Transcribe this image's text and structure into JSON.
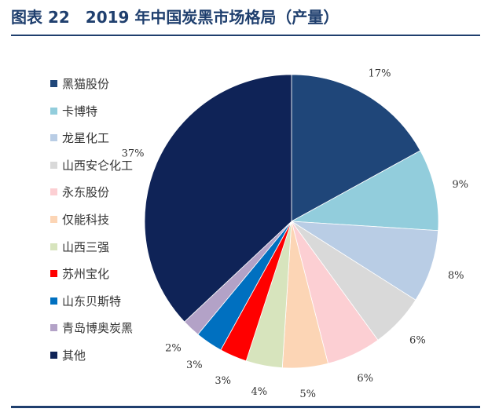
{
  "header": {
    "title": "图表 22　2019 年中国炭黑市场格局（产量）"
  },
  "chart_data": {
    "type": "pie",
    "title": "2019 年中国炭黑市场格局（产量）",
    "start": "12 o'clock, clockwise",
    "legend_position": "left",
    "slices": [
      {
        "name": "黑猫股份",
        "value": 17,
        "label": "17%",
        "color": "#1f4679"
      },
      {
        "name": "卡博特",
        "value": 9,
        "label": "9%",
        "color": "#92cddc"
      },
      {
        "name": "龙星化工",
        "value": 8,
        "label": "8%",
        "color": "#b9cde5"
      },
      {
        "name": "山西安仑化工",
        "value": 6,
        "label": "6%",
        "color": "#d9d9d9"
      },
      {
        "name": "永东股份",
        "value": 6,
        "label": "6%",
        "color": "#fccfd3"
      },
      {
        "name": "仅能科技",
        "value": 5,
        "label": "5%",
        "color": "#fcd5b5"
      },
      {
        "name": "山西三强",
        "value": 4,
        "label": "4%",
        "color": "#d7e4bd"
      },
      {
        "name": "苏州宝化",
        "value": 3,
        "label": "3%",
        "color": "#ff0000"
      },
      {
        "name": "山东贝斯特",
        "value": 3,
        "label": "3%",
        "color": "#0070c0"
      },
      {
        "name": "青岛博奥炭黑",
        "value": 2,
        "label": "2%",
        "color": "#b3a2c7"
      },
      {
        "name": "其他",
        "value": 37,
        "label": "37%",
        "color": "#0f2357"
      }
    ]
  }
}
